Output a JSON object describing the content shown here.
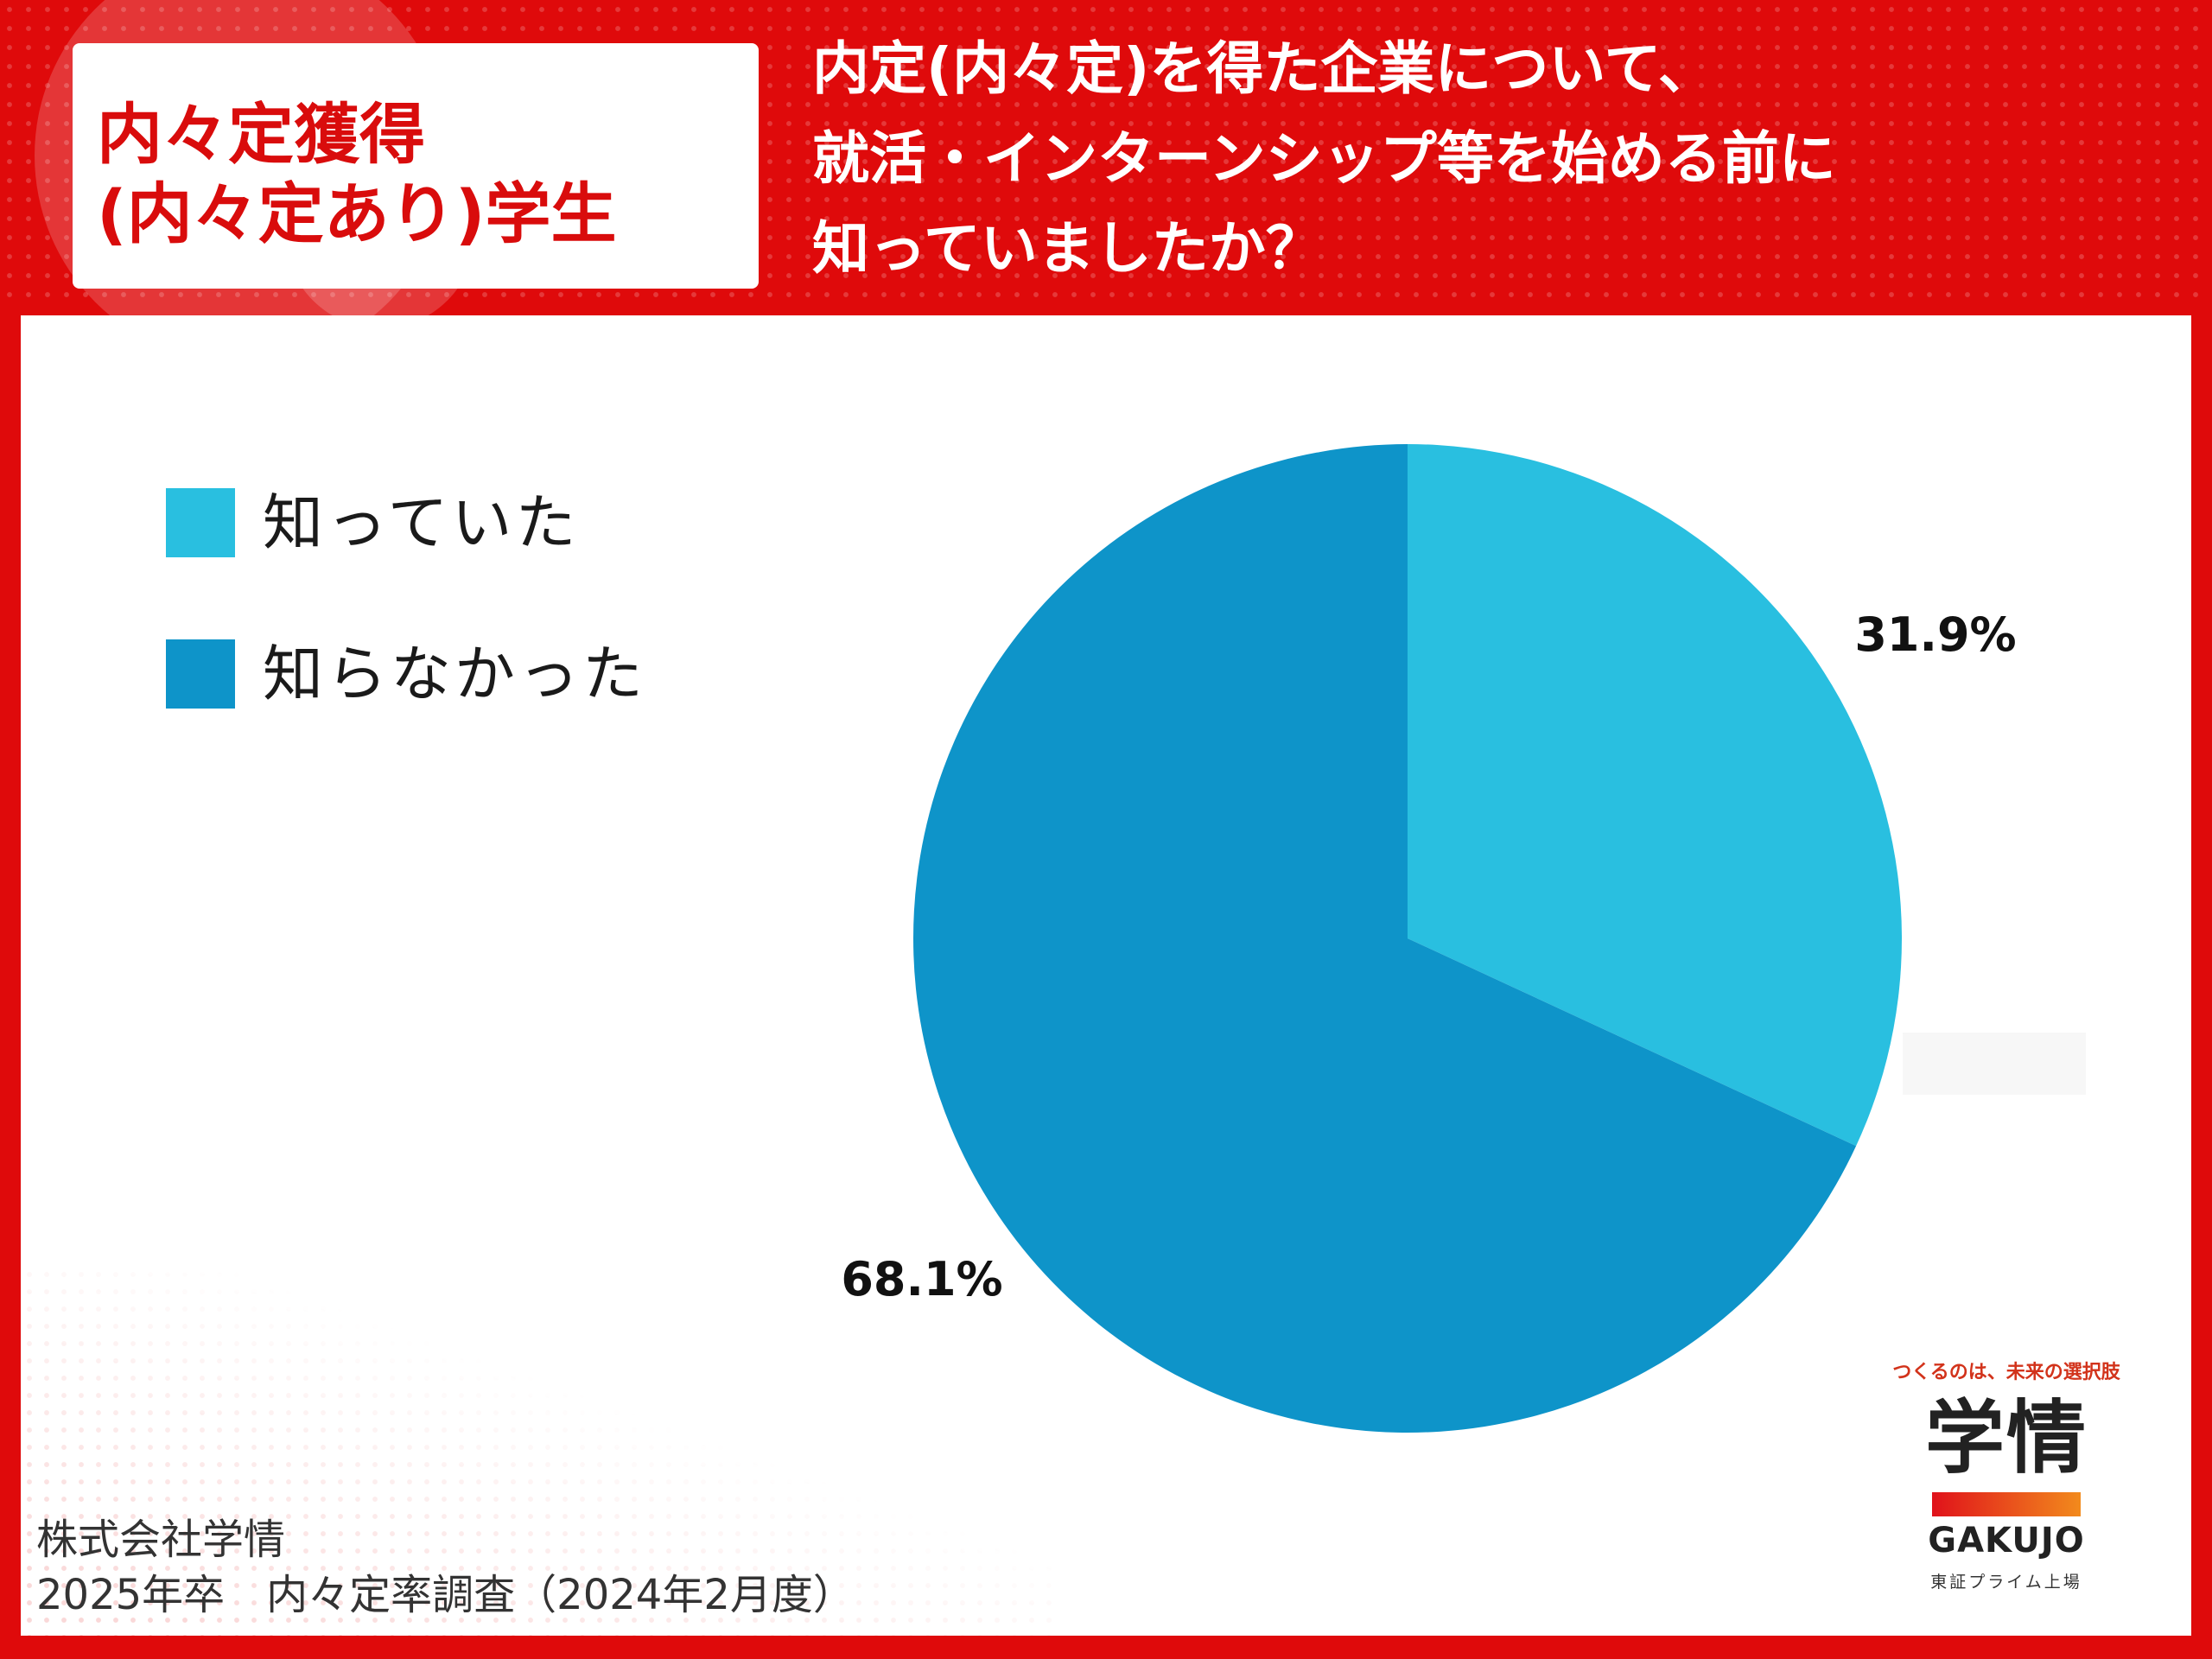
{
  "tag": {
    "text": "内々定獲得\n(内々定あり)学生"
  },
  "question": {
    "text": "内定(内々定)を得た企業について、\n就活・インターンシップ等を始める前に\n知っていましたか？"
  },
  "source": {
    "text": "株式会社学情\n2025年卒　内々定率調査（2024年2月度）"
  },
  "logo": {
    "tagline": "つくるのは、未来の選択肢",
    "mark": "学情",
    "name": "GAKUJO",
    "sub": "東証プライム上場"
  },
  "colors": {
    "background": "#df0a0b",
    "accent_text": "#d90c0c",
    "slice_knew": "#29bfe0",
    "slice_didnt_know": "#0e94c9"
  },
  "chart_data": {
    "type": "pie",
    "labels": [
      "知っていた",
      "知らなかった"
    ],
    "values": [
      31.9,
      68.1
    ],
    "value_labels": [
      "31.9%",
      "68.1%"
    ],
    "colors": [
      "#29bfe0",
      "#0e94c9"
    ],
    "start": "12 o'clock",
    "direction": "clockwise",
    "legend_position": "left"
  }
}
